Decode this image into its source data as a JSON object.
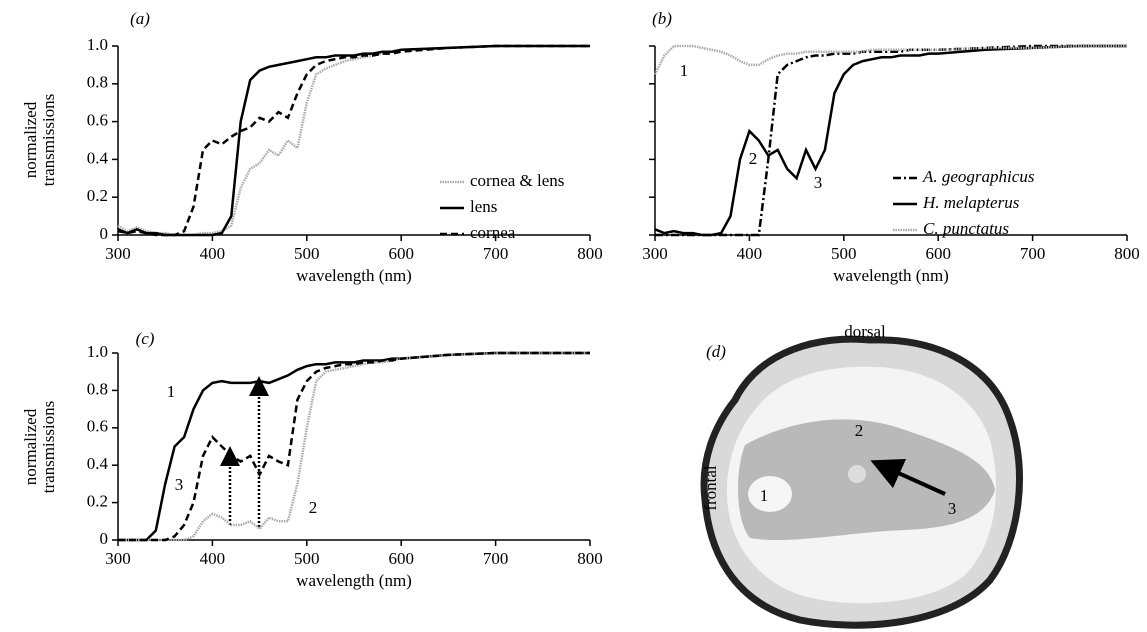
{
  "chart_data": [
    {
      "type": "line",
      "panel": "(a)",
      "xlabel": "wavelength (nm)",
      "ylabel": "normalized transmissions",
      "xlim": [
        300,
        800
      ],
      "ylim": [
        0,
        1
      ],
      "xticks": [
        300,
        400,
        500,
        600,
        700,
        800
      ],
      "yticks": [
        0,
        0.2,
        0.4,
        0.6,
        0.8,
        {
          "value": 1,
          "label": "1.0"
        }
      ],
      "ytick_labels": true,
      "legend": "center-right",
      "x": [
        300,
        310,
        320,
        330,
        340,
        350,
        360,
        370,
        380,
        390,
        400,
        410,
        420,
        430,
        440,
        450,
        460,
        470,
        480,
        490,
        500,
        510,
        520,
        530,
        540,
        550,
        560,
        570,
        580,
        590,
        600,
        650,
        700,
        750,
        800
      ],
      "series": [
        {
          "name": "cornea & lens",
          "color": "#aaaaaa",
          "style": "dotted",
          "values": [
            0.05,
            0.02,
            0.04,
            0.02,
            0.01,
            0.01,
            0,
            0,
            0,
            0.01,
            0.01,
            0.02,
            0.05,
            0.25,
            0.35,
            0.38,
            0.45,
            0.42,
            0.5,
            0.46,
            0.7,
            0.85,
            0.88,
            0.9,
            0.92,
            0.93,
            0.94,
            0.95,
            0.96,
            0.97,
            0.98,
            0.99,
            1,
            1,
            1
          ]
        },
        {
          "name": "lens",
          "color": "#000000",
          "style": "solid",
          "values": [
            0.03,
            0.01,
            0.03,
            0.01,
            0.01,
            0,
            0,
            0,
            0,
            0,
            0,
            0.01,
            0.1,
            0.6,
            0.82,
            0.87,
            0.89,
            0.9,
            0.91,
            0.92,
            0.93,
            0.94,
            0.94,
            0.95,
            0.95,
            0.95,
            0.96,
            0.96,
            0.97,
            0.97,
            0.98,
            0.99,
            1,
            1,
            1
          ]
        },
        {
          "name": "cornea",
          "color": "#000000",
          "style": "dashed",
          "values": [
            0.02,
            0.01,
            0.02,
            0.01,
            0,
            0,
            0,
            0.02,
            0.15,
            0.45,
            0.5,
            0.48,
            0.52,
            0.55,
            0.57,
            0.62,
            0.6,
            0.65,
            0.62,
            0.75,
            0.85,
            0.9,
            0.92,
            0.93,
            0.94,
            0.94,
            0.95,
            0.95,
            0.96,
            0.96,
            0.97,
            0.99,
            1,
            1,
            1
          ]
        }
      ]
    },
    {
      "type": "line",
      "panel": "(b)",
      "xlabel": "wavelength (nm)",
      "xlim": [
        300,
        800
      ],
      "ylim": [
        0,
        1
      ],
      "xticks": [
        300,
        400,
        500,
        600,
        700,
        800
      ],
      "yticks": [
        0,
        0.2,
        0.4,
        0.6,
        0.8,
        1
      ],
      "ytick_labels": false,
      "legend": "bottom-right",
      "annotations": [
        "1",
        "2",
        "3"
      ],
      "x": [
        300,
        310,
        320,
        330,
        340,
        350,
        360,
        370,
        380,
        390,
        400,
        410,
        420,
        430,
        440,
        450,
        460,
        470,
        480,
        490,
        500,
        510,
        520,
        530,
        540,
        550,
        560,
        570,
        580,
        590,
        600,
        650,
        700,
        750,
        800
      ],
      "series": [
        {
          "name": "A. geographicus",
          "color": "#000000",
          "style": "dashdot",
          "values": [
            0,
            0,
            0,
            0,
            0,
            0,
            0,
            0,
            0,
            0,
            0,
            0,
            0.4,
            0.85,
            0.9,
            0.92,
            0.94,
            0.95,
            0.95,
            0.96,
            0.96,
            0.96,
            0.97,
            0.97,
            0.97,
            0.97,
            0.97,
            0.98,
            0.98,
            0.98,
            0.98,
            0.99,
            1,
            1,
            1
          ]
        },
        {
          "name": "H. melapterus",
          "color": "#000000",
          "style": "solid",
          "values": [
            0.03,
            0.01,
            0.02,
            0.01,
            0.01,
            0,
            0,
            0.01,
            0.1,
            0.4,
            0.55,
            0.5,
            0.42,
            0.45,
            0.35,
            0.3,
            0.45,
            0.35,
            0.45,
            0.75,
            0.85,
            0.9,
            0.92,
            0.93,
            0.94,
            0.94,
            0.95,
            0.95,
            0.95,
            0.96,
            0.96,
            0.98,
            0.99,
            1,
            1
          ]
        },
        {
          "name": "C. punctatus",
          "color": "#aaaaaa",
          "style": "dotted",
          "values": [
            0.85,
            0.95,
            1,
            1,
            1,
            0.99,
            0.98,
            0.97,
            0.95,
            0.92,
            0.9,
            0.9,
            0.93,
            0.95,
            0.96,
            0.96,
            0.97,
            0.97,
            0.97,
            0.97,
            0.97,
            0.97,
            0.97,
            0.98,
            0.98,
            0.98,
            0.98,
            0.98,
            0.98,
            0.98,
            0.98,
            0.99,
            0.99,
            1,
            1
          ]
        }
      ]
    },
    {
      "type": "line",
      "panel": "(c)",
      "xlabel": "wavelength (nm)",
      "ylabel": "normalized transmissions",
      "xlim": [
        300,
        800
      ],
      "ylim": [
        0,
        1
      ],
      "xticks": [
        300,
        400,
        500,
        600,
        700,
        800
      ],
      "yticks": [
        0,
        0.2,
        0.4,
        0.6,
        0.8,
        {
          "value": 1,
          "label": "1.0"
        }
      ],
      "ytick_labels": true,
      "annotations": [
        "1",
        "2",
        "3"
      ],
      "x": [
        300,
        310,
        320,
        330,
        340,
        350,
        360,
        370,
        380,
        390,
        400,
        410,
        420,
        430,
        440,
        450,
        460,
        470,
        480,
        490,
        500,
        510,
        520,
        530,
        540,
        550,
        560,
        570,
        580,
        590,
        600,
        650,
        700,
        750,
        800
      ],
      "series": [
        {
          "color": "#000000",
          "style": "solid",
          "values": [
            0,
            0,
            0,
            0,
            0.05,
            0.3,
            0.5,
            0.55,
            0.7,
            0.8,
            0.84,
            0.85,
            0.84,
            0.84,
            0.84,
            0.85,
            0.84,
            0.86,
            0.88,
            0.91,
            0.93,
            0.94,
            0.94,
            0.95,
            0.95,
            0.95,
            0.96,
            0.96,
            0.96,
            0.97,
            0.97,
            0.99,
            1,
            1,
            1
          ]
        },
        {
          "color": "#aaaaaa",
          "style": "dotted",
          "values": [
            0,
            0,
            0,
            0,
            0,
            0,
            0,
            0,
            0.02,
            0.1,
            0.14,
            0.12,
            0.08,
            0.08,
            0.1,
            0.06,
            0.12,
            0.1,
            0.1,
            0.3,
            0.6,
            0.85,
            0.9,
            0.91,
            0.92,
            0.93,
            0.94,
            0.95,
            0.95,
            0.96,
            0.97,
            0.99,
            1,
            1,
            1
          ]
        },
        {
          "color": "#000000",
          "style": "dashed",
          "values": [
            0,
            0,
            0,
            0,
            0,
            0,
            0.02,
            0.08,
            0.2,
            0.45,
            0.55,
            0.5,
            0.45,
            0.42,
            0.45,
            0.35,
            0.45,
            0.42,
            0.4,
            0.75,
            0.85,
            0.9,
            0.92,
            0.93,
            0.94,
            0.94,
            0.95,
            0.95,
            0.96,
            0.96,
            0.97,
            0.99,
            1,
            1,
            1
          ]
        }
      ]
    }
  ],
  "image_panel": {
    "label": "(d)",
    "annotations": [
      "dorsal",
      "frontal",
      "1",
      "2",
      "3"
    ]
  }
}
